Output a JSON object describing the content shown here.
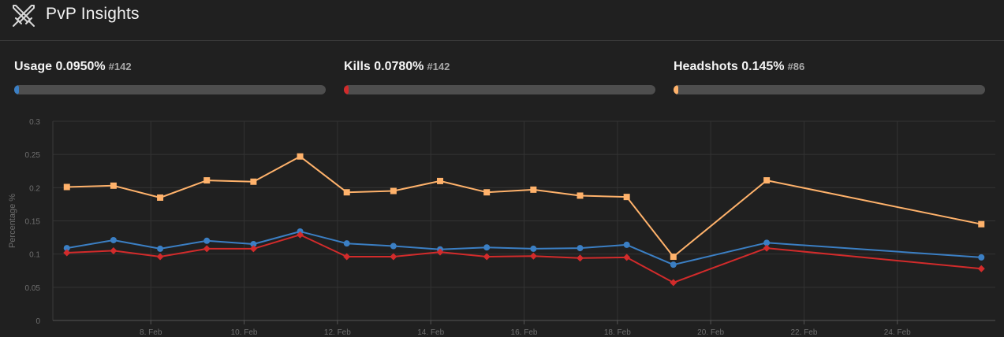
{
  "header": {
    "title": "PvP Insights",
    "logo_icon": "crossed-swords-icon"
  },
  "stats": [
    {
      "key": "usage",
      "label": "Usage 0.0950%",
      "rank": "#142",
      "color": "#3b7fc4",
      "fill_fraction": 0.005
    },
    {
      "key": "kills",
      "label": "Kills 0.0780%",
      "rank": "#142",
      "color": "#d22b2b",
      "fill_fraction": 0.005
    },
    {
      "key": "headshots",
      "label": "Headshots 0.145%",
      "rank": "#86",
      "color": "#ffb26b",
      "fill_fraction": 0.005
    }
  ],
  "chart_data": {
    "type": "line",
    "ylabel": "Percentage %",
    "ylim": [
      0,
      0.3
    ],
    "yticks": [
      0,
      0.05,
      0.1,
      0.15,
      0.2,
      0.25,
      0.3
    ],
    "ytick_labels": [
      "0",
      "0.05",
      "0.1",
      "0.15",
      "0.2",
      "0.25",
      "0.3"
    ],
    "xlim": [
      5.9,
      26.1
    ],
    "xticks": [
      8,
      10,
      12,
      14,
      16,
      18,
      20,
      22,
      24
    ],
    "xtick_labels": [
      "8. Feb",
      "10. Feb",
      "12. Feb",
      "14. Feb",
      "16. Feb",
      "18. Feb",
      "20. Feb",
      "22. Feb",
      "24. Feb"
    ],
    "grid": true,
    "x": [
      6.2,
      7.2,
      8.2,
      9.2,
      10.2,
      11.2,
      12.2,
      13.2,
      14.2,
      15.2,
      16.2,
      17.2,
      18.2,
      19.2,
      21.2,
      25.8
    ],
    "series": [
      {
        "name": "Headshots",
        "color": "#ffb26b",
        "marker": "square",
        "values": [
          0.201,
          0.203,
          0.185,
          0.211,
          0.209,
          0.247,
          0.193,
          0.195,
          0.21,
          0.193,
          0.197,
          0.188,
          0.186,
          0.096,
          0.211,
          0.145
        ]
      },
      {
        "name": "Usage",
        "color": "#3b7fc4",
        "marker": "circle",
        "values": [
          0.109,
          0.121,
          0.108,
          0.12,
          0.115,
          0.134,
          0.116,
          0.112,
          0.107,
          0.11,
          0.108,
          0.109,
          0.114,
          0.084,
          0.117,
          0.095
        ]
      },
      {
        "name": "Kills",
        "color": "#d22b2b",
        "marker": "diamond",
        "values": [
          0.102,
          0.105,
          0.096,
          0.108,
          0.108,
          0.129,
          0.096,
          0.096,
          0.103,
          0.096,
          0.097,
          0.094,
          0.095,
          0.057,
          0.109,
          0.078
        ]
      }
    ]
  }
}
